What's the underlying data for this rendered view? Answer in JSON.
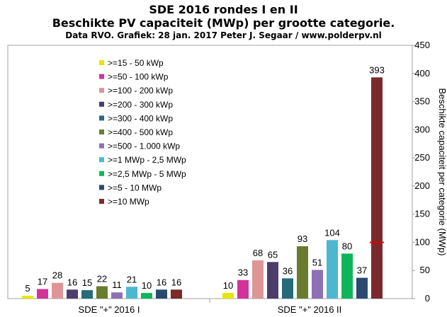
{
  "chart_data": {
    "type": "bar",
    "title": "SDE 2016 rondes I en II",
    "subtitle": "Beschikte  PV capaciteit  (MWp) per grootte categorie.",
    "source": "Data RVO. Grafiek: 28 jan. 2017 Peter J. Segaar / www.polderpv.nl",
    "ylabel": "Beschikte capaciteit per categorie (MWp)",
    "xlabel": "",
    "ylim": [
      0,
      450
    ],
    "yticks": [
      0,
      50,
      100,
      150,
      200,
      250,
      300,
      350,
      400,
      450
    ],
    "categories": [
      "SDE \"+\" 2016 I",
      "SDE \"+\" 2016 II"
    ],
    "grid": false,
    "legend_position": "left",
    "series": [
      {
        "name": ">=15 - 50 kWp",
        "color": "#e5e500",
        "values": [
          5,
          10
        ]
      },
      {
        "name": ">=50 - 100 kWp",
        "color": "#d1339a",
        "values": [
          17,
          33
        ]
      },
      {
        "name": ">=100 - 200 kWp",
        "color": "#de9595",
        "values": [
          28,
          68
        ]
      },
      {
        "name": ">=200 - 300 kWp",
        "color": "#4d3d6b",
        "values": [
          16,
          65
        ]
      },
      {
        "name": ">=300 - 400 kWp",
        "color": "#276b7a",
        "values": [
          15,
          36
        ]
      },
      {
        "name": ">=400 - 500 kWp",
        "color": "#697b2f",
        "values": [
          22,
          93
        ]
      },
      {
        "name": ">=500 - 1.000 kWp",
        "color": "#8e70b6",
        "values": [
          11,
          51
        ]
      },
      {
        "name": ">=1 MWp - 2,5 MWp",
        "color": "#4db7cf",
        "values": [
          21,
          104
        ]
      },
      {
        "name": ">=2,5 MWp - 5 MWp",
        "color": "#0fb55a",
        "values": [
          10,
          80
        ]
      },
      {
        "name": ">=5 - 10 MWp",
        "color": "#2a4a70",
        "values": [
          16,
          37
        ]
      },
      {
        "name": ">=10 MWp",
        "color": "#7a2a2a",
        "values": [
          16,
          393
        ]
      }
    ],
    "annotations": [
      {
        "type": "marker-line",
        "series": ">=10 MWp",
        "category": "SDE \"+\" 2016 II",
        "value": 100,
        "color": "#e00000"
      }
    ]
  }
}
